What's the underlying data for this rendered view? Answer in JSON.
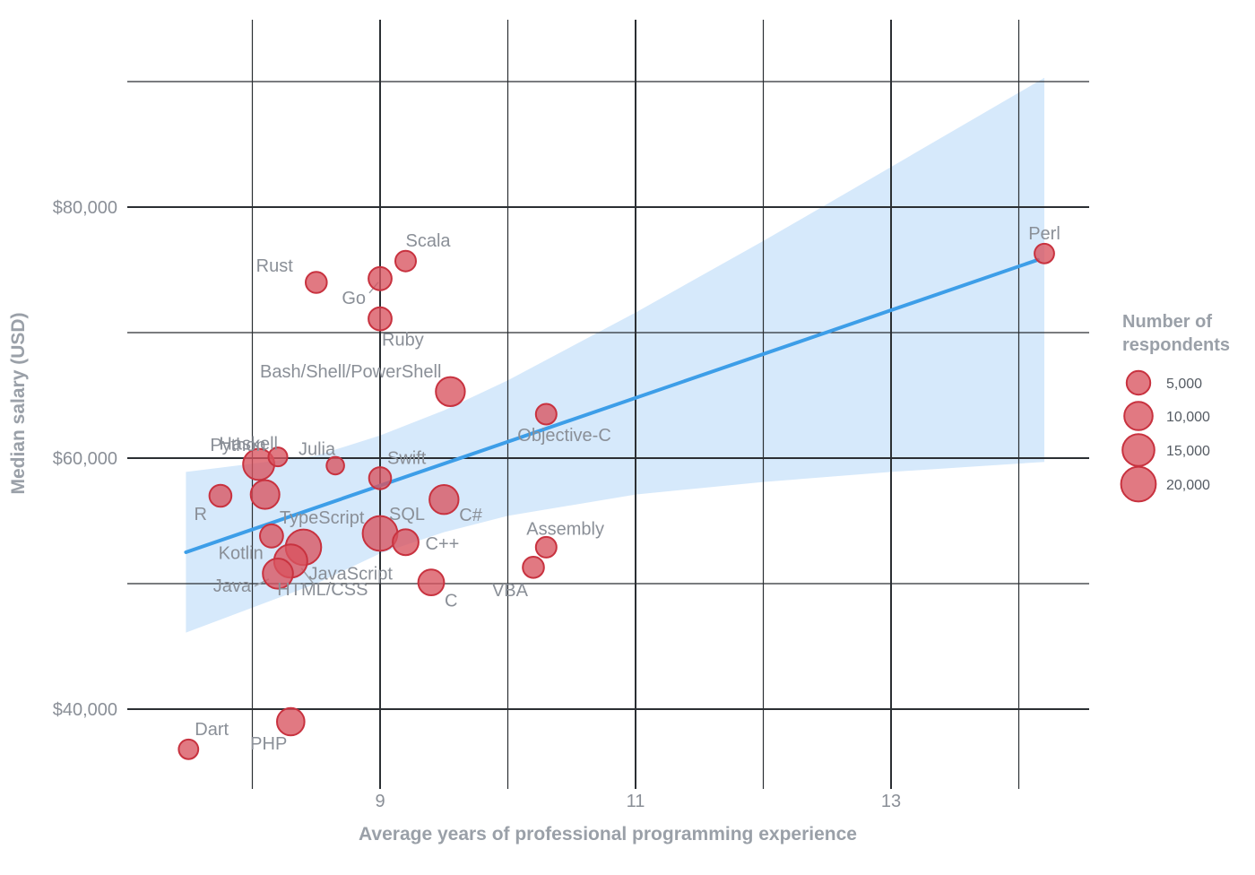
{
  "chart_data": {
    "type": "scatter",
    "xlabel": "Average years of professional programming experience",
    "ylabel": "Median salary (USD)",
    "x_ticks": [
      9,
      11,
      13
    ],
    "x_tick_labels": [
      "9",
      "11",
      "13"
    ],
    "y_ticks": [
      40000,
      60000,
      80000
    ],
    "y_tick_labels": [
      "$40,000",
      "$60,000",
      "$80,000"
    ],
    "xlim": [
      6.9,
      14.55
    ],
    "ylim": [
      34300,
      92000
    ],
    "grid": true,
    "point_color": "#d9535f",
    "trend_color": "#3d9ee8",
    "band_color": "#d6e9fb",
    "legend": {
      "title_lines": [
        "Number of",
        "respondents"
      ],
      "placement": "right",
      "entries": [
        {
          "label": "5,000",
          "value": 5000
        },
        {
          "label": "10,000",
          "value": 10000
        },
        {
          "label": "15,000",
          "value": 15000
        },
        {
          "label": "20,000",
          "value": 20000
        }
      ]
    },
    "trend": {
      "x": [
        7.48,
        14.15
      ],
      "y": [
        52500,
        75800
      ],
      "band": [
        {
          "x": 7.48,
          "lo": 46100,
          "hi": 58900
        },
        {
          "x": 8.5,
          "lo": 50000,
          "hi": 60200
        },
        {
          "x": 9.0,
          "lo": 52400,
          "hi": 61800
        },
        {
          "x": 9.5,
          "lo": 54100,
          "hi": 63800
        },
        {
          "x": 10.0,
          "lo": 55400,
          "hi": 66200
        },
        {
          "x": 11.0,
          "lo": 57100,
          "hi": 71600
        },
        {
          "x": 12.0,
          "lo": 58100,
          "hi": 77300
        },
        {
          "x": 13.0,
          "lo": 58900,
          "hi": 83200
        },
        {
          "x": 14.2,
          "lo": 59700,
          "hi": 90300
        }
      ]
    },
    "points": [
      {
        "label": "Perl",
        "x": 14.2,
        "y": 76300,
        "n": 2000
      },
      {
        "label": "Scala",
        "x": 9.2,
        "y": 75700,
        "n": 2600
      },
      {
        "label": "Rust",
        "x": 8.5,
        "y": 74000,
        "n": 3000
      },
      {
        "label": "Go",
        "x": 9.0,
        "y": 74300,
        "n": 4500
      },
      {
        "label": "Ruby",
        "x": 9.0,
        "y": 71100,
        "n": 4500
      },
      {
        "label": "Bash/Shell/PowerShell",
        "x": 9.55,
        "y": 65300,
        "n": 11000
      },
      {
        "label": "Objective-C",
        "x": 10.3,
        "y": 63500,
        "n": 2600
      },
      {
        "label": "Haskell",
        "x": 8.2,
        "y": 60100,
        "n": 1600
      },
      {
        "label": "Julia",
        "x": 8.65,
        "y": 59400,
        "n": 1000
      },
      {
        "label": "Swift",
        "x": 9.0,
        "y": 58400,
        "n": 3600
      },
      {
        "label": "Python",
        "x": 8.05,
        "y": 59500,
        "n": 14000
      },
      {
        "label": "R",
        "x": 7.75,
        "y": 57000,
        "n": 3600
      },
      {
        "label": "Kotlin",
        "x": 8.1,
        "y": 57100,
        "n": 10500
      },
      {
        "label": "C#",
        "x": 9.5,
        "y": 56700,
        "n": 11000
      },
      {
        "label": "TypeScript",
        "x": 8.15,
        "y": 53800,
        "n": 4500
      },
      {
        "label": "SQL",
        "x": 9.0,
        "y": 54000,
        "n": 20000
      },
      {
        "label": "C++",
        "x": 9.2,
        "y": 53300,
        "n": 7000
      },
      {
        "label": "JavaScript",
        "x": 8.4,
        "y": 52900,
        "n": 21000
      },
      {
        "label": "HTML/CSS",
        "x": 8.3,
        "y": 51800,
        "n": 17000
      },
      {
        "label": "Java",
        "x": 8.2,
        "y": 50800,
        "n": 12500
      },
      {
        "label": "C",
        "x": 9.4,
        "y": 50100,
        "n": 7000
      },
      {
        "label": "Assembly",
        "x": 10.3,
        "y": 52900,
        "n": 2600
      },
      {
        "label": "VBA",
        "x": 10.2,
        "y": 51300,
        "n": 3000
      },
      {
        "label": "PHP",
        "x": 8.3,
        "y": 39000,
        "n": 9000
      },
      {
        "label": "Dart",
        "x": 7.5,
        "y": 36800,
        "n": 2000
      }
    ]
  }
}
